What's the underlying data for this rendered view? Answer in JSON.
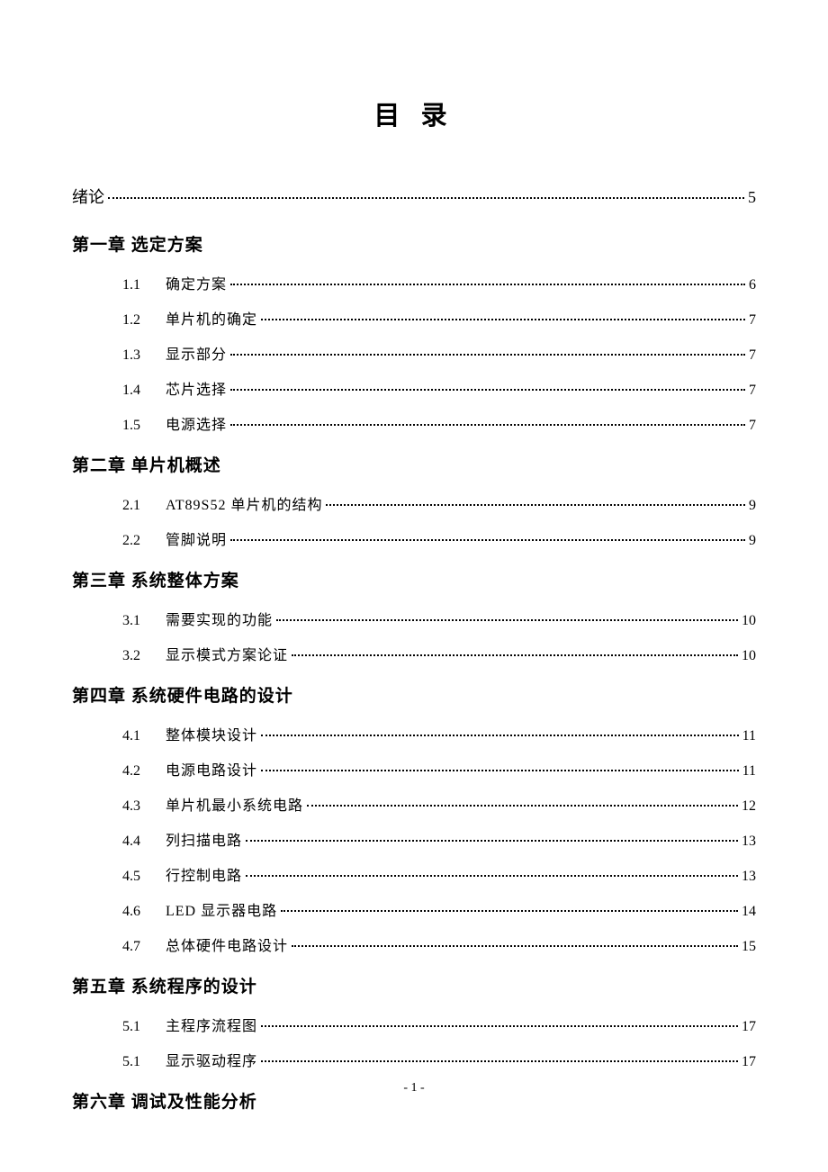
{
  "title": "目 录",
  "intro": {
    "label": "绪论",
    "page": "5"
  },
  "chapters": [
    {
      "heading": "第一章  选定方案",
      "items": [
        {
          "num": "1.1",
          "text": "确定方案",
          "page": "6"
        },
        {
          "num": "1.2",
          "text": "单片机的确定",
          "page": "7"
        },
        {
          "num": "1.3",
          "text": "显示部分",
          "page": "7"
        },
        {
          "num": "1.4",
          "text": "芯片选择",
          "page": "7"
        },
        {
          "num": "1.5",
          "text": "电源选择",
          "page": "7"
        }
      ]
    },
    {
      "heading": "第二章  单片机概述",
      "items": [
        {
          "num": "2.1",
          "text": "AT89S52 单片机的结构",
          "page": "9"
        },
        {
          "num": "2.2",
          "text": "管脚说明",
          "page": "9"
        }
      ]
    },
    {
      "heading": "第三章  系统整体方案",
      "items": [
        {
          "num": "3.1",
          "text": "需要实现的功能",
          "page": "10"
        },
        {
          "num": "3.2",
          "text": "显示模式方案论证",
          "page": "10"
        }
      ]
    },
    {
      "heading": "第四章  系统硬件电路的设计",
      "items": [
        {
          "num": "4.1",
          "text": "整体模块设计",
          "page": "11"
        },
        {
          "num": "4.2",
          "text": "电源电路设计",
          "page": "11"
        },
        {
          "num": "4.3",
          "text": "单片机最小系统电路",
          "page": "12"
        },
        {
          "num": "4.4",
          "text": "列扫描电路",
          "page": "13"
        },
        {
          "num": "4.5",
          "text": "行控制电路",
          "page": "13"
        },
        {
          "num": "4.6",
          "text": "LED 显示器电路",
          "page": "14"
        },
        {
          "num": "4.7",
          "text": "总体硬件电路设计",
          "page": "15"
        }
      ]
    },
    {
      "heading": "第五章  系统程序的设计",
      "items": [
        {
          "num": "5.1",
          "text": "主程序流程图",
          "page": "17"
        },
        {
          "num": "5.1",
          "text": "显示驱动程序",
          "page": "17"
        }
      ]
    },
    {
      "heading": "第六章  调试及性能分析",
      "items": []
    }
  ],
  "pageNumber": "- 1 -"
}
